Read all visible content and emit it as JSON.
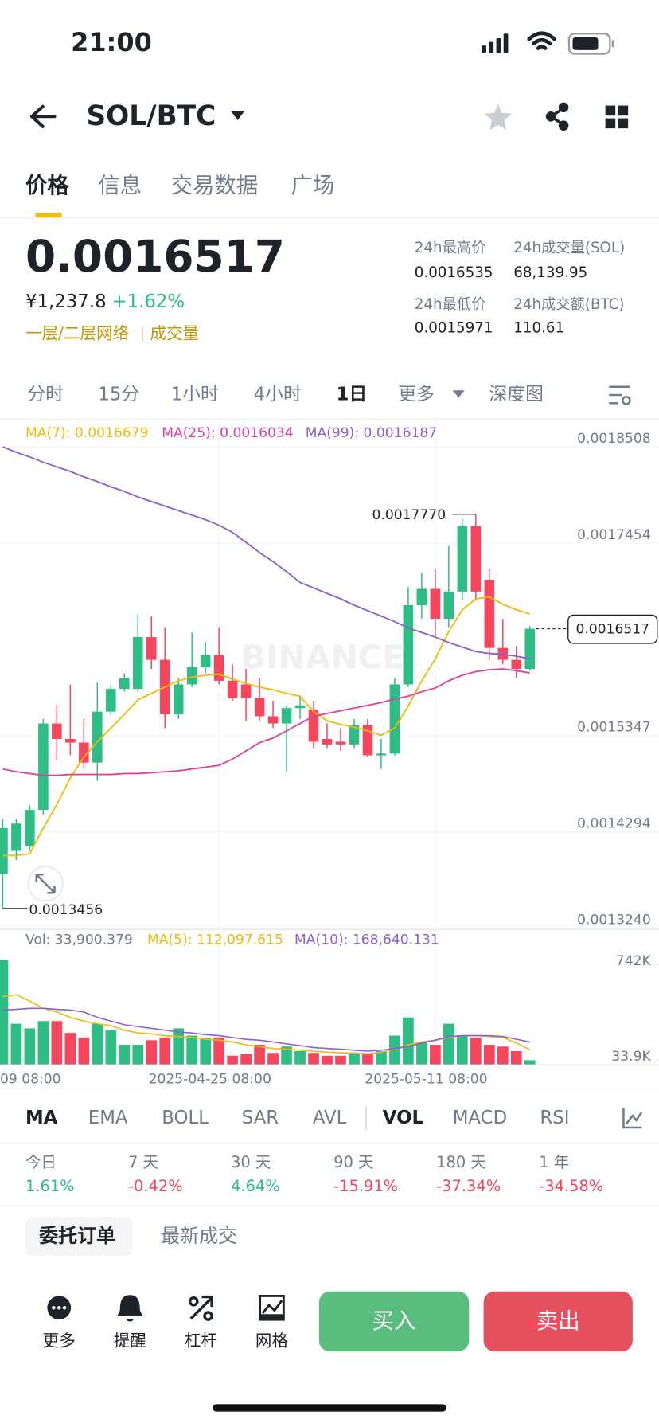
{
  "status_bar": {
    "time": "21:00"
  },
  "header": {
    "pair": "SOL/BTC"
  },
  "tabs": [
    "价格",
    "信息",
    "交易数据",
    "广场"
  ],
  "price": {
    "last": "0.0016517",
    "fiat": "¥1,237.8",
    "change": "+1.62%",
    "tags": [
      "一层/二层网络",
      "成交量"
    ]
  },
  "stats": [
    {
      "label": "24h最高价",
      "value": "0.0016535"
    },
    {
      "label": "24h成交量(SOL)",
      "value": "68,139.95"
    },
    {
      "label": "24h最低价",
      "value": "0.0015971"
    },
    {
      "label": "24h成交额(BTC)",
      "value": "110.61"
    }
  ],
  "intervals": [
    "分时",
    "15分",
    "1小时",
    "4小时",
    "1日",
    "更多",
    "深度图"
  ],
  "chart_data": [
    {
      "type": "candlestick",
      "watermark": "BINANCE",
      "open": [
        0.0013837,
        0.0014086,
        0.0014136,
        0.0014534,
        0.001548,
        0.0015311,
        0.0015271,
        0.0015052,
        0.001561,
        0.0015859,
        0.0015859,
        0.0016426,
        0.0016177,
        0.001558,
        0.0015908,
        0.0016098,
        0.0016227,
        0.0015948,
        0.0015908,
        0.0015759,
        0.001556,
        0.001548,
        0.0015649,
        0.001563,
        0.0015311,
        0.0015281,
        0.0015251,
        0.001546,
        0.0015132,
        0.0015151,
        0.0015908,
        0.0016775,
        0.0016954,
        0.0016626,
        0.0016924,
        0.0017641,
        0.0017054,
        0.0016307,
        0.0016177,
        0.0016078
      ],
      "high": [
        0.0014434,
        0.0014434,
        0.0014584,
        0.001553,
        0.0015679,
        0.0015908,
        0.001553,
        0.0015928,
        0.0015908,
        0.0016028,
        0.0016675,
        0.0016655,
        0.0016526,
        0.0015978,
        0.0016476,
        0.0016377,
        0.0016526,
        0.0016128,
        0.0016078,
        0.0015978,
        0.0015729,
        0.0015679,
        0.0015779,
        0.0015729,
        0.001548,
        0.001543,
        0.001553,
        0.001553,
        0.0015311,
        0.0015978,
        0.0016974,
        0.0017124,
        0.0017173,
        0.0017422,
        0.0017721,
        0.001777,
        0.0017173,
        0.0016626,
        0.0016327,
        0.0016546
      ],
      "low": [
        0.0013456,
        0.0013986,
        0.0014086,
        0.0014484,
        0.0015082,
        0.0015132,
        0.0014982,
        0.0014853,
        0.001558,
        0.0015829,
        0.0015829,
        0.0016078,
        0.001543,
        0.001553,
        0.0015879,
        0.0016028,
        0.0015908,
        0.0015729,
        0.001551,
        0.001551,
        0.001543,
        0.0014952,
        0.001553,
        0.0015211,
        0.0015211,
        0.0015181,
        0.0015211,
        0.0015112,
        0.0014982,
        0.0015132,
        0.0015879,
        0.0016626,
        0.0016426,
        0.0016526,
        0.0016825,
        0.0016825,
        0.0016177,
        0.0016128,
        0.0015978,
        0.0016058
      ],
      "close": [
        0.0014335,
        0.0014385,
        0.0014534,
        0.001548,
        0.0015311,
        0.0015271,
        0.0015052,
        0.001561,
        0.0015859,
        0.0015978,
        0.0016426,
        0.0016177,
        0.001558,
        0.0015908,
        0.0016098,
        0.0016227,
        0.0015948,
        0.0015759,
        0.0015759,
        0.001556,
        0.001548,
        0.0015649,
        0.0015679,
        0.0015281,
        0.0015251,
        0.0015251,
        0.001546,
        0.0015132,
        0.0015151,
        0.0015908,
        0.0016775,
        0.0016954,
        0.0016626,
        0.0016924,
        0.0017641,
        0.0016924,
        0.0016307,
        0.0016177,
        0.0016078,
        0.0016517
      ],
      "up_color": "#2ebd85",
      "down_color": "#f6465d",
      "series": [
        {
          "name": "MA(7): 0.0016679",
          "color": "#f0b90b",
          "values": [
            0.0014036,
            0.0014036,
            0.0014056,
            0.0014335,
            0.0014594,
            0.0014883,
            0.0015112,
            0.0015281,
            0.001543,
            0.001558,
            0.0015739,
            0.0015809,
            0.0015879,
            0.0015948,
            0.0015988,
            0.0016008,
            0.0016018,
            0.0015968,
            0.0015918,
            0.0015879,
            0.0015849,
            0.0015809,
            0.0015779,
            0.001561,
            0.001551,
            0.001547,
            0.001544,
            0.00154,
            0.0015351,
            0.001543,
            0.001567,
            0.0015948,
            0.0016187,
            0.0016486,
            0.0016725,
            0.0016845,
            0.0016865,
            0.0016785,
            0.0016725,
            0.0016679
          ]
        },
        {
          "name": "MA(25): 0.0016034",
          "color": "#e040a0",
          "values": [
            0.0014982,
            0.0014952,
            0.0014932,
            0.0014912,
            0.0014912,
            0.0014922,
            0.0014922,
            0.0014922,
            0.0014922,
            0.0014932,
            0.0014932,
            0.0014942,
            0.0014952,
            0.0014962,
            0.0014982,
            0.0015002,
            0.0015022,
            0.0015092,
            0.0015181,
            0.0015271,
            0.0015321,
            0.00154,
            0.001548,
            0.001556,
            0.001559,
            0.001562,
            0.0015649,
            0.0015679,
            0.0015709,
            0.0015749,
            0.0015779,
            0.0015829,
            0.0015869,
            0.0015948,
            0.0016008,
            0.0016048,
            0.0016068,
            0.0016078,
            0.0016058,
            0.0016034
          ]
        },
        {
          "name": "MA(99): 0.0016187",
          "color": "#8e5fd0",
          "values": [
            0.0018508,
            0.0018448,
            0.0018398,
            0.0018339,
            0.0018289,
            0.0018239,
            0.0018179,
            0.0018129,
            0.001807,
            0.001802,
            0.001796,
            0.001791,
            0.001786,
            0.001781,
            0.0017761,
            0.0017711,
            0.0017651,
            0.0017572,
            0.0017462,
            0.0017352,
            0.0017252,
            0.0017143,
            0.0017024,
            0.0016964,
            0.0016904,
            0.0016845,
            0.0016775,
            0.0016715,
            0.0016655,
            0.0016596,
            0.0016526,
            0.0016476,
            0.0016426,
            0.0016367,
            0.0016317,
            0.0016267,
            0.0016247,
            0.0016237,
            0.0016217,
            0.0016187
          ]
        }
      ],
      "ylim": [
        0.0013229,
        0.0018807
      ],
      "yticks": [
        0.0018508,
        0.0017454,
        0.0015347,
        0.0014294,
        {
          "value": 0.001324,
          "label": "0.0013240"
        }
      ],
      "grid": true,
      "annotations": [
        {
          "value": 0.001777,
          "label": "0.0017770"
        },
        {
          "value": 0.0013456,
          "label": "0.0013456"
        },
        {
          "value": 0.0016517,
          "label": "0.0016517"
        }
      ]
    },
    {
      "type": "bar",
      "header": "Vol: 33,900.379",
      "categories": [
        "09 08:00",
        null,
        null,
        null,
        null,
        null,
        null,
        null,
        null,
        null,
        null,
        null,
        null,
        null,
        null,
        null,
        "2025-04-25 08:00",
        null,
        null,
        null,
        null,
        null,
        null,
        null,
        null,
        null,
        null,
        null,
        null,
        null,
        null,
        null,
        "2025-05-11 08:00",
        null,
        null,
        null,
        null,
        null,
        null,
        null
      ],
      "values": [
        776000,
        304000,
        270000,
        324000,
        324000,
        236000,
        202000,
        304000,
        256000,
        148000,
        148000,
        182000,
        202000,
        270000,
        216000,
        202000,
        202000,
        67000,
        81000,
        148000,
        88000,
        135000,
        101000,
        88000,
        67000,
        67000,
        88000,
        81000,
        101000,
        216000,
        351000,
        169000,
        148000,
        304000,
        216000,
        202000,
        148000,
        135000,
        101000,
        33900.379
      ],
      "series": [
        {
          "name": "MA(5): 112,097.615",
          "color": "#f0b90b",
          "values": [
            506000,
            519000,
            472000,
            418000,
            391000,
            351000,
            324000,
            304000,
            290000,
            256000,
            236000,
            229000,
            216000,
            209000,
            202000,
            189000,
            182000,
            169000,
            148000,
            135000,
            121000,
            115000,
            108000,
            101000,
            94000,
            88000,
            88000,
            81000,
            94000,
            115000,
            148000,
            169000,
            182000,
            202000,
            216000,
            216000,
            209000,
            202000,
            162000,
            112097.615
          ]
        },
        {
          "name": "MA(10): 168,640.131",
          "color": "#8e5fd0",
          "values": [
            405000,
            411000,
            418000,
            418000,
            411000,
            405000,
            391000,
            351000,
            324000,
            297000,
            283000,
            270000,
            256000,
            243000,
            236000,
            223000,
            216000,
            202000,
            189000,
            182000,
            169000,
            155000,
            142000,
            128000,
            121000,
            115000,
            108000,
            101000,
            108000,
            121000,
            135000,
            162000,
            182000,
            209000,
            216000,
            216000,
            216000,
            209000,
            189000,
            168640.131
          ]
        }
      ],
      "ylim": [
        0,
        998000
      ],
      "yticks": [
        {
          "value": 742000,
          "label": "742K"
        },
        {
          "value": 33900,
          "label": "33.9K"
        }
      ]
    }
  ],
  "indicators": [
    "MA",
    "EMA",
    "BOLL",
    "SAR",
    "AVL",
    "VOL",
    "MACD",
    "RSI"
  ],
  "performance": [
    {
      "label": "今日",
      "value": "1.61%"
    },
    {
      "label": "7 天",
      "value": "-0.42%"
    },
    {
      "label": "30 天",
      "value": "4.64%"
    },
    {
      "label": "90 天",
      "value": "-15.91%"
    },
    {
      "label": "180 天",
      "value": "-37.34%"
    },
    {
      "label": "1 年",
      "value": "-34.58%"
    }
  ],
  "order_tabs": [
    "委托订单",
    "最新成交"
  ],
  "bottom_bar": {
    "tools": [
      "更多",
      "提醒",
      "杠杆",
      "网格"
    ],
    "buy": "买入",
    "sell": "卖出"
  }
}
